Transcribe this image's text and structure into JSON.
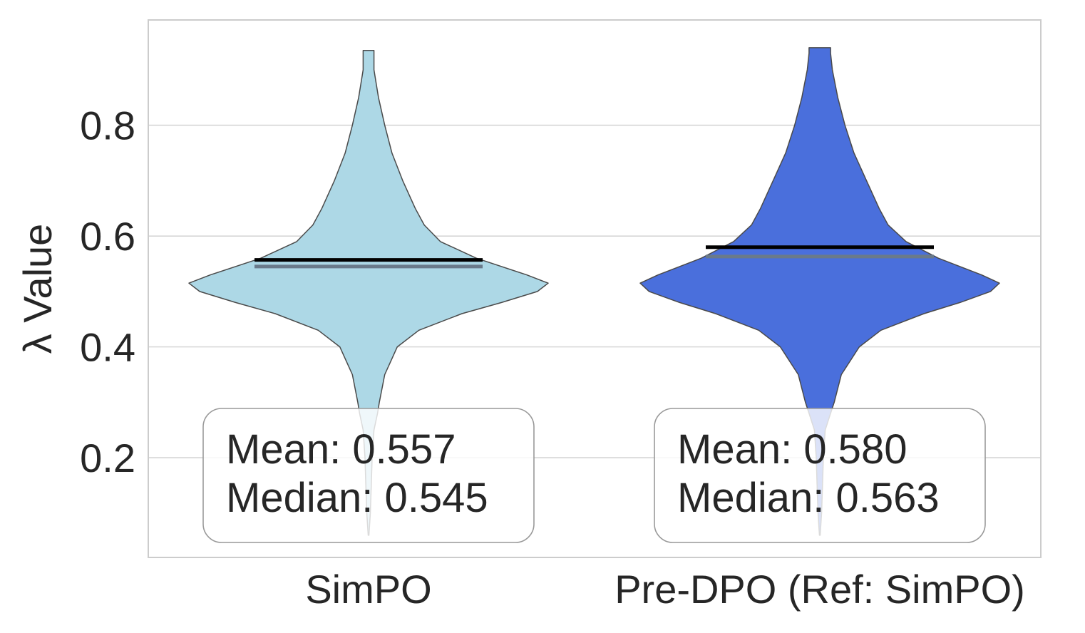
{
  "chart_data": {
    "type": "violin",
    "categories": [
      "SimPO",
      "Pre-DPO (Ref: SimPO)"
    ],
    "ylabel": "λ Value",
    "xlabel": "",
    "ylim": [
      0.02,
      0.99
    ],
    "yticks": [
      0.2,
      0.4,
      0.6,
      0.8
    ],
    "ytick_labels": [
      "0.2",
      "0.4",
      "0.6",
      "0.8"
    ],
    "grid": "horizontal",
    "series": [
      {
        "category": "SimPO",
        "color": "#add8e6",
        "range": [
          0.06,
          0.94
        ],
        "mean": 0.557,
        "median": 0.545,
        "mean_text": "Mean: 0.557",
        "median_text": "Median: 0.545",
        "density_profile": [
          [
            0.06,
            0.0
          ],
          [
            0.1,
            0.01
          ],
          [
            0.15,
            0.015
          ],
          [
            0.2,
            0.02
          ],
          [
            0.25,
            0.03
          ],
          [
            0.28,
            0.05
          ],
          [
            0.3,
            0.06
          ],
          [
            0.35,
            0.09
          ],
          [
            0.4,
            0.16
          ],
          [
            0.43,
            0.28
          ],
          [
            0.46,
            0.52
          ],
          [
            0.48,
            0.74
          ],
          [
            0.5,
            0.94
          ],
          [
            0.515,
            1.0
          ],
          [
            0.53,
            0.88
          ],
          [
            0.56,
            0.6
          ],
          [
            0.59,
            0.4
          ],
          [
            0.62,
            0.31
          ],
          [
            0.65,
            0.26
          ],
          [
            0.7,
            0.19
          ],
          [
            0.75,
            0.13
          ],
          [
            0.8,
            0.09
          ],
          [
            0.85,
            0.055
          ],
          [
            0.9,
            0.03
          ],
          [
            0.935,
            0.03
          ]
        ]
      },
      {
        "category": "Pre-DPO (Ref: SimPO)",
        "color": "#4a6fdc",
        "range": [
          0.06,
          0.94
        ],
        "mean": 0.58,
        "median": 0.563,
        "mean_text": "Mean: 0.580",
        "median_text": "Median: 0.563",
        "density_profile": [
          [
            0.06,
            0.0
          ],
          [
            0.1,
            0.01
          ],
          [
            0.15,
            0.015
          ],
          [
            0.2,
            0.02
          ],
          [
            0.25,
            0.03
          ],
          [
            0.28,
            0.06
          ],
          [
            0.3,
            0.08
          ],
          [
            0.35,
            0.12
          ],
          [
            0.4,
            0.22
          ],
          [
            0.43,
            0.34
          ],
          [
            0.46,
            0.58
          ],
          [
            0.48,
            0.78
          ],
          [
            0.5,
            0.95
          ],
          [
            0.515,
            1.0
          ],
          [
            0.53,
            0.9
          ],
          [
            0.56,
            0.66
          ],
          [
            0.59,
            0.48
          ],
          [
            0.62,
            0.38
          ],
          [
            0.65,
            0.33
          ],
          [
            0.7,
            0.26
          ],
          [
            0.75,
            0.19
          ],
          [
            0.8,
            0.14
          ],
          [
            0.85,
            0.1
          ],
          [
            0.9,
            0.07
          ],
          [
            0.93,
            0.06
          ],
          [
            0.94,
            0.06
          ]
        ]
      }
    ]
  }
}
